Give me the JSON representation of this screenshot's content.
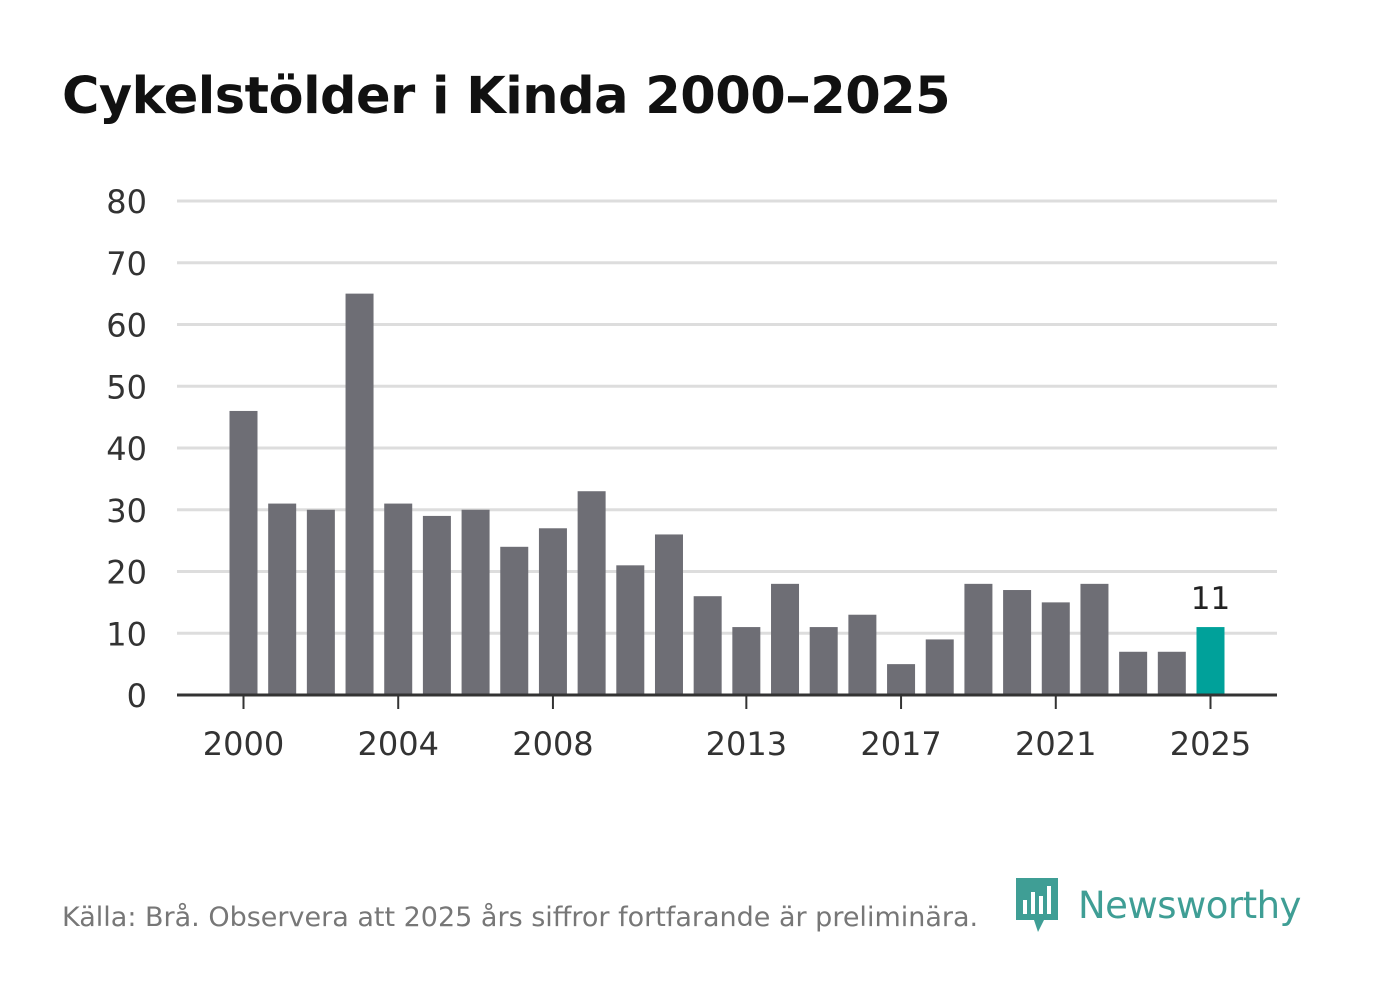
{
  "page": {
    "title": "Cykelstölder i Kinda 2000–2025",
    "source": "Källa: Brå. Observera att 2025 års siffror fortfarande är preliminära.",
    "brand": "Newsworthy"
  },
  "colors": {
    "bar": "#6e6e75",
    "highlight": "#00a19a",
    "grid": "#dddddd",
    "axis": "#333333",
    "text": "#333333",
    "brand": "#3f9e95"
  },
  "chart_data": {
    "type": "bar",
    "title": "Cykelstölder i Kinda 2000–2025",
    "xlabel": "",
    "ylabel": "",
    "categories": [
      "2000",
      "2001",
      "2002",
      "2003",
      "2004",
      "2005",
      "2006",
      "2007",
      "2008",
      "2009",
      "2010",
      "2011",
      "2012",
      "2013",
      "2014",
      "2015",
      "2016",
      "2017",
      "2018",
      "2019",
      "2020",
      "2021",
      "2022",
      "2023",
      "2024",
      "2025"
    ],
    "values": [
      46,
      31,
      30,
      65,
      31,
      29,
      30,
      24,
      27,
      33,
      21,
      26,
      16,
      11,
      18,
      11,
      13,
      5,
      9,
      18,
      17,
      15,
      18,
      7,
      7,
      11
    ],
    "ylim": [
      0,
      80
    ],
    "yticks": [
      0,
      10,
      20,
      30,
      40,
      50,
      60,
      70,
      80
    ],
    "xtick_labels": [
      "2000",
      "2004",
      "2008",
      "2013",
      "2017",
      "2021",
      "2025"
    ],
    "highlight": {
      "category": "2025",
      "label": "11"
    },
    "grid": true
  }
}
